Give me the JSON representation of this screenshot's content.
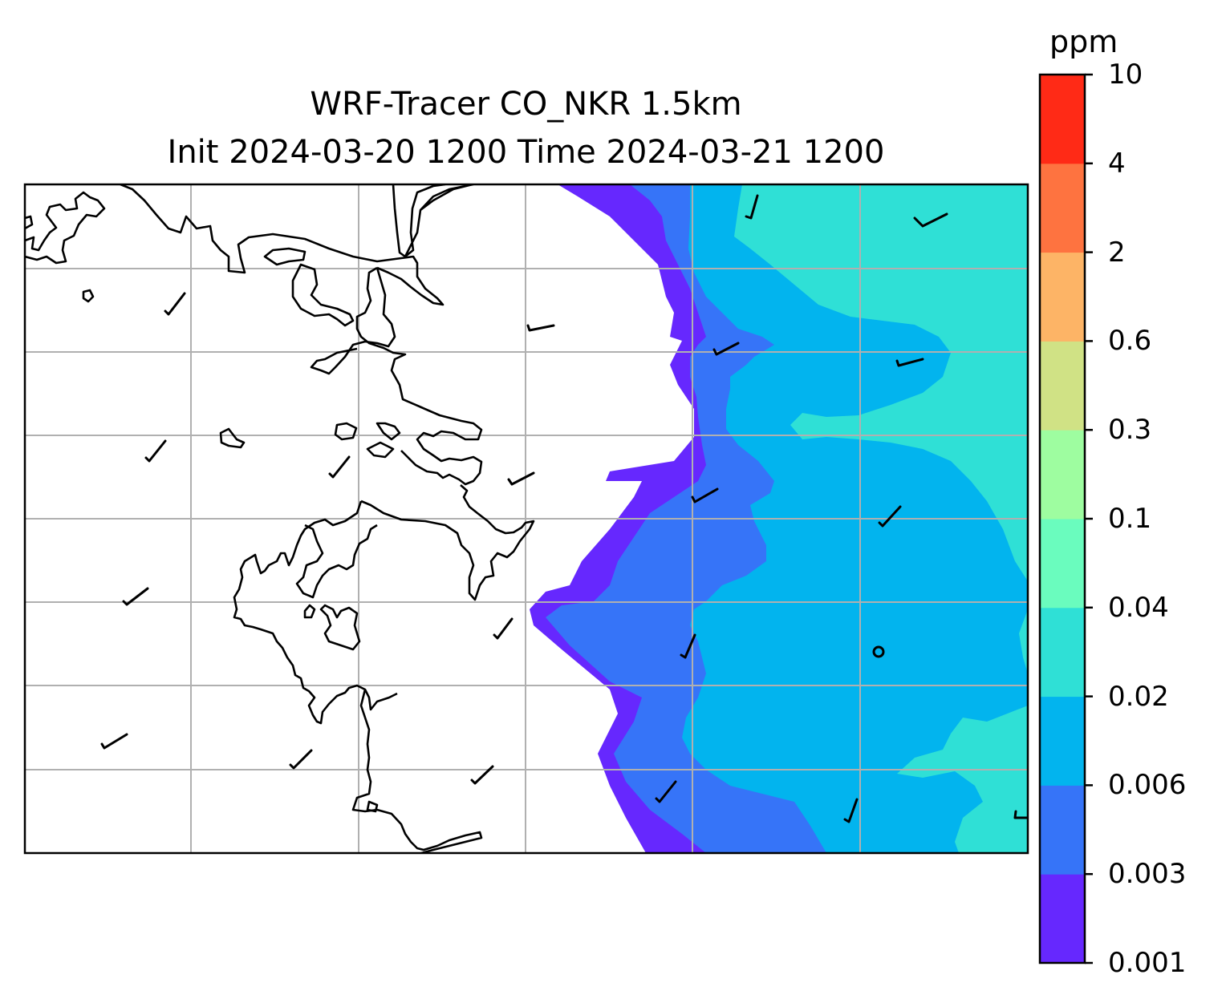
{
  "title": {
    "line1": "WRF-Tracer CO_NKR 1.5km",
    "line2": "Init 2024-03-20 1200 Time 2024-03-21 1200"
  },
  "colorbar": {
    "unit": "ppm",
    "levels": [
      "0.001",
      "0.003",
      "0.006",
      "0.02",
      "0.04",
      "0.1",
      "0.3",
      "0.6",
      "2",
      "4",
      "10"
    ],
    "colors": [
      "#6628fe",
      "#3674f8",
      "#02b4ee",
      "#2fe0d6",
      "#6afcbe",
      "#9efda0",
      "#d0e285",
      "#fdb466",
      "#fe7340",
      "#ff2a16"
    ]
  },
  "map": {
    "field": "CO tracer concentration",
    "gridlines": true,
    "gridline_color": "#b0b0b0",
    "coastline_color": "#000000",
    "features": [
      "coastline",
      "wind-barbs",
      "contour-fill"
    ]
  }
}
